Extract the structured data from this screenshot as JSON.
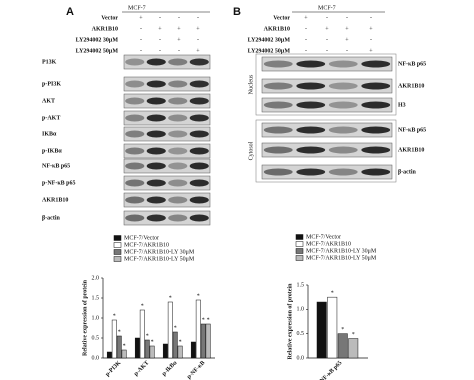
{
  "panel_a": {
    "label": "A",
    "cell_line": "MCF-7",
    "treatments": [
      {
        "name": "Vector",
        "signs": [
          "+",
          "-",
          "-",
          "-"
        ]
      },
      {
        "name": "AKR1B10",
        "signs": [
          "-",
          "+",
          "+",
          "+"
        ]
      },
      {
        "name": "LY294002 30μM",
        "signs": [
          "-",
          "-",
          "+",
          "-"
        ]
      },
      {
        "name": "LY294002 50μM",
        "signs": [
          "-",
          "-",
          "-",
          "+"
        ]
      }
    ],
    "blots": [
      "P13K",
      "p-PI3K",
      "AKT",
      "p-AKT",
      "IKBα",
      "p-IKBα",
      "NF-κB p65",
      "p-NF-κB p65",
      "AKR1B10",
      "β-actin"
    ]
  },
  "panel_b": {
    "label": "B",
    "cell_line": "MCF-7",
    "treatments": [
      {
        "name": "Vector",
        "signs": [
          "+",
          "-",
          "-",
          "-"
        ]
      },
      {
        "name": "AKR1B10",
        "signs": [
          "-",
          "+",
          "+",
          "+"
        ]
      },
      {
        "name": "LY294002 30μM",
        "signs": [
          "-",
          "-",
          "+",
          "-"
        ]
      },
      {
        "name": "LY294002 50μM",
        "signs": [
          "-",
          "-",
          "-",
          "+"
        ]
      }
    ],
    "groups": [
      {
        "name": "Nucleus",
        "blots": [
          "NF-κB p65",
          "AKR1B10",
          "H3"
        ]
      },
      {
        "name": "Cytosol",
        "blots": [
          "NF-κB p65",
          "AKR1B10",
          "β-actin"
        ]
      }
    ]
  },
  "significance": "*",
  "chart_data": [
    {
      "type": "bar",
      "y_label": "Relative expression of protein",
      "categories": [
        "p-PI3K",
        "p-AKT",
        "p-IkBα",
        "p-NF-κB"
      ],
      "series": [
        {
          "name": "MCF-7/Vector",
          "color": "#111111",
          "values": [
            0.15,
            0.5,
            0.35,
            0.4
          ]
        },
        {
          "name": "MCF-7/AKR1B10",
          "color": "#ffffff",
          "values": [
            0.95,
            1.2,
            1.4,
            1.45
          ]
        },
        {
          "name": "MCF-7/AKR1B10-LY 30μM",
          "color": "#777777",
          "values": [
            0.55,
            0.45,
            0.65,
            0.85
          ]
        },
        {
          "name": "MCF-7/AKR1B10-LY 50μM",
          "color": "#bbbbbb",
          "values": [
            0.2,
            0.3,
            0.3,
            0.85
          ]
        }
      ],
      "ylim": [
        0,
        2
      ],
      "yticks": [
        {
          "value": 0,
          "label": "0.0"
        },
        {
          "value": 0.5,
          "label": "0.5"
        },
        {
          "value": 1,
          "label": "1.0"
        },
        {
          "value": 1.5,
          "label": "1.5"
        },
        {
          "value": 2,
          "label": "2.0"
        }
      ]
    },
    {
      "type": "bar",
      "y_label": "Relative expression of protein",
      "categories": [
        "NF-κB p65"
      ],
      "series": [
        {
          "name": "MCF-7/Vector",
          "color": "#111111",
          "values": [
            1.15
          ]
        },
        {
          "name": "MCF-7/AKR1B10",
          "color": "#ffffff",
          "values": [
            1.25
          ]
        },
        {
          "name": "MCF-7/AKR1B10-LY 30μM",
          "color": "#777777",
          "values": [
            0.5
          ]
        },
        {
          "name": "MCF-7/AKR1B10-LY 50μM",
          "color": "#bbbbbb",
          "values": [
            0.4
          ]
        }
      ],
      "ylim": [
        0,
        1.5
      ],
      "yticks": [
        {
          "value": 0,
          "label": "0.0"
        },
        {
          "value": 0.5,
          "label": "0.5"
        },
        {
          "value": 1,
          "label": "1.0"
        },
        {
          "value": 1.5,
          "label": "1.5"
        }
      ]
    }
  ]
}
